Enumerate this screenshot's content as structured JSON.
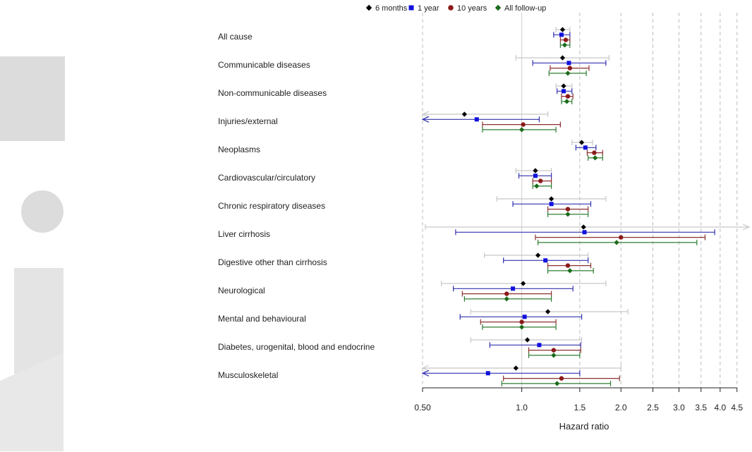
{
  "chart_data": {
    "type": "forest",
    "xlabel": "Hazard ratio",
    "xscale": "log",
    "xlim": [
      0.5,
      4.9
    ],
    "xticks": [
      {
        "value": 0.5,
        "label": "0.50"
      },
      {
        "value": 1.0,
        "label": "1.0"
      },
      {
        "value": 1.5,
        "label": "1.5"
      },
      {
        "value": 2.0,
        "label": "2.0"
      },
      {
        "value": 2.5,
        "label": "2.5"
      },
      {
        "value": 3.0,
        "label": "3.0"
      },
      {
        "value": 3.5,
        "label": "3.5"
      },
      {
        "value": 4.0,
        "label": "4.0"
      },
      {
        "value": 4.5,
        "label": "4.5"
      }
    ],
    "solid_reference": 1.0,
    "legend_position": "top",
    "series": [
      {
        "name": "6 months",
        "marker": "diamond",
        "color": "#000000",
        "ci_color": "#c8c8c8"
      },
      {
        "name": "1 year",
        "marker": "square",
        "color": "#1111dd",
        "ci_color": "#3030b0"
      },
      {
        "name": "10 years",
        "marker": "circle",
        "color": "#8b1a1a",
        "ci_color": "#8b3030"
      },
      {
        "name": "All follow-up",
        "marker": "diamond",
        "color": "#1a6b1a",
        "ci_color": "#2e7d32"
      }
    ],
    "categories": [
      "All cause",
      "Communicable diseases",
      "Non-communicable diseases",
      "Injuries/external",
      "Neoplasms",
      "Cardiovascular/circulatory",
      "Chronic respiratory diseases",
      "Liver cirrhosis",
      "Digestive other than cirrhosis",
      "Neurological",
      "Mental and behavioural",
      "Diabetes, urogenital, blood and endocrine",
      "Musculoskeletal"
    ],
    "estimates": [
      [
        [
          1.33,
          1.27,
          1.4
        ],
        [
          1.32,
          1.25,
          1.4
        ],
        [
          1.36,
          1.31,
          1.4
        ],
        [
          1.35,
          1.31,
          1.4
        ]
      ],
      [
        [
          1.33,
          0.96,
          1.84
        ],
        [
          1.39,
          1.08,
          1.8
        ],
        [
          1.4,
          1.22,
          1.6
        ],
        [
          1.38,
          1.21,
          1.57
        ]
      ],
      [
        [
          1.34,
          1.27,
          1.42
        ],
        [
          1.34,
          1.28,
          1.42
        ],
        [
          1.38,
          1.32,
          1.43
        ],
        [
          1.37,
          1.32,
          1.42
        ]
      ],
      [
        [
          0.67,
          0.5,
          1.2
        ],
        [
          0.73,
          0.5,
          1.13
        ],
        [
          1.01,
          0.76,
          1.31
        ],
        [
          1.0,
          0.76,
          1.27
        ]
      ],
      [
        [
          1.52,
          1.42,
          1.64
        ],
        [
          1.56,
          1.46,
          1.68
        ],
        [
          1.66,
          1.58,
          1.76
        ],
        [
          1.67,
          1.59,
          1.76
        ]
      ],
      [
        [
          1.1,
          0.96,
          1.23
        ],
        [
          1.1,
          0.98,
          1.23
        ],
        [
          1.14,
          1.08,
          1.23
        ],
        [
          1.11,
          1.08,
          1.23
        ]
      ],
      [
        [
          1.23,
          0.84,
          1.8
        ],
        [
          1.23,
          0.94,
          1.62
        ],
        [
          1.38,
          1.2,
          1.59
        ],
        [
          1.38,
          1.2,
          1.59
        ]
      ],
      [
        [
          1.54,
          0.51,
          4.9
        ],
        [
          1.55,
          0.63,
          3.85
        ],
        [
          2.0,
          1.1,
          3.6
        ],
        [
          1.94,
          1.12,
          3.4
        ]
      ],
      [
        [
          1.12,
          0.77,
          1.59
        ],
        [
          1.18,
          0.88,
          1.59
        ],
        [
          1.38,
          1.2,
          1.62
        ],
        [
          1.4,
          1.2,
          1.65
        ]
      ],
      [
        [
          1.01,
          0.57,
          1.8
        ],
        [
          0.94,
          0.62,
          1.43
        ],
        [
          0.9,
          0.66,
          1.23
        ],
        [
          0.9,
          0.67,
          1.23
        ]
      ],
      [
        [
          1.2,
          0.7,
          2.1
        ],
        [
          1.02,
          0.65,
          1.52
        ],
        [
          1.0,
          0.75,
          1.27
        ],
        [
          1.0,
          0.76,
          1.27
        ]
      ],
      [
        [
          1.04,
          0.7,
          1.52
        ],
        [
          1.13,
          0.8,
          1.51
        ],
        [
          1.25,
          1.05,
          1.51
        ],
        [
          1.25,
          1.05,
          1.5
        ]
      ],
      [
        [
          0.96,
          0.5,
          2.0
        ],
        [
          0.79,
          0.5,
          1.5
        ],
        [
          1.32,
          0.88,
          1.98
        ],
        [
          1.28,
          0.87,
          1.86
        ]
      ]
    ]
  }
}
